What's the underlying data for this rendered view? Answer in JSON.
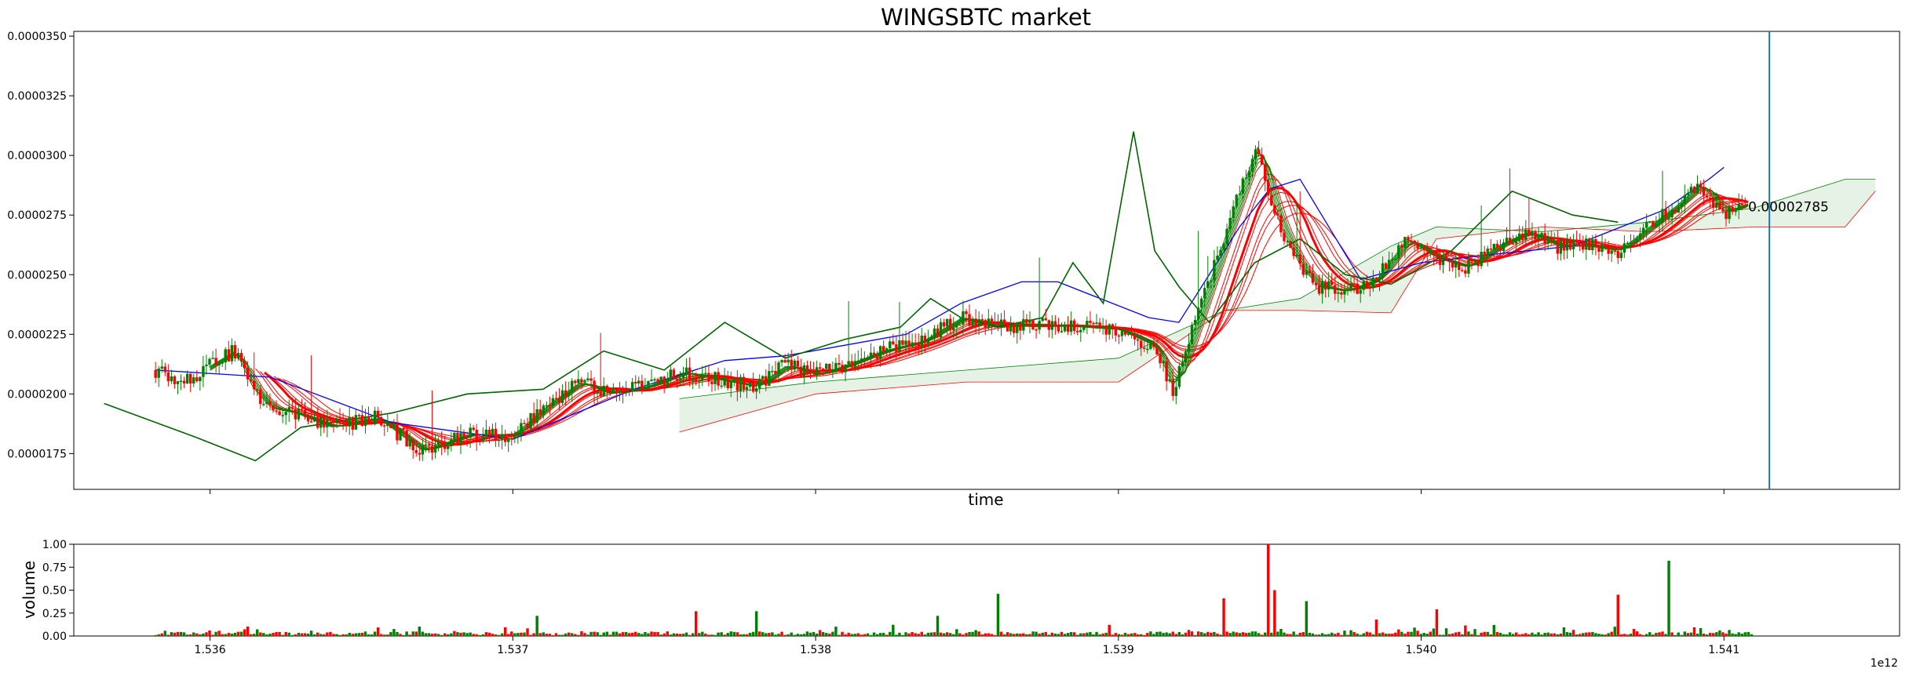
{
  "chart_data": [
    {
      "type": "candlestick",
      "title": "WINGSBTC market",
      "xlabel": "time",
      "ylabel": "",
      "x_offset_label": "1e12",
      "ylim": [
        1.6e-05,
        3.52e-05
      ],
      "xlim": [
        1.53555,
        1.54158
      ],
      "y_ticks": [
        "0.0000175",
        "0.0000200",
        "0.0000225",
        "0.0000250",
        "0.0000275",
        "0.0000300",
        "0.0000325",
        "0.0000350"
      ],
      "x_ticks": [
        "1.536",
        "1.537",
        "1.538",
        "1.539",
        "1.540",
        "1.541"
      ],
      "last_price_label": "0.00002785",
      "vertical_marker_x": 1.54115,
      "grid": false,
      "colors": {
        "up": "#008000",
        "down": "#ff0000",
        "kijun": "#0000ff",
        "tenkan": "#ff0000",
        "chikou": "#006400",
        "marker": "#1f77b4"
      },
      "price_path": {
        "x": [
          1.53582,
          1.53592,
          1.536,
          1.53608,
          1.53614,
          1.5362,
          1.53628,
          1.5364,
          1.53655,
          1.5367,
          1.53685,
          1.537,
          1.53712,
          1.53722,
          1.53732,
          1.53744,
          1.53756,
          1.53768,
          1.5378,
          1.5379,
          1.538,
          1.5381,
          1.53822,
          1.53835,
          1.53848,
          1.5386,
          1.53875,
          1.53888,
          1.539,
          1.53912,
          1.53918,
          1.53924,
          1.53932,
          1.5394,
          1.53946,
          1.5395,
          1.53954,
          1.5396,
          1.53966,
          1.53975,
          1.53985,
          1.53995,
          1.54005,
          1.54015,
          1.54025,
          1.54035,
          1.54045,
          1.54055,
          1.54065,
          1.54075,
          1.54085,
          1.54092,
          1.541,
          1.54108
        ],
        "y": [
          2.1e-05,
          2.05e-05,
          2.12e-05,
          2.18e-05,
          2.02e-05,
          1.94e-05,
          1.92e-05,
          1.86e-05,
          1.9e-05,
          1.76e-05,
          1.83e-05,
          1.83e-05,
          1.96e-05,
          2.05e-05,
          2e-05,
          2.03e-05,
          2.09e-05,
          2.06e-05,
          2.03e-05,
          2.12e-05,
          2.08e-05,
          2.12e-05,
          2.18e-05,
          2.22e-05,
          2.32e-05,
          2.28e-05,
          2.29e-05,
          2.28e-05,
          2.27e-05,
          2.2e-05,
          2.02e-05,
          2.25e-05,
          2.55e-05,
          2.85e-05,
          3.05e-05,
          2.82e-05,
          2.68e-05,
          2.53e-05,
          2.45e-05,
          2.43e-05,
          2.48e-05,
          2.65e-05,
          2.57e-05,
          2.53e-05,
          2.62e-05,
          2.68e-05,
          2.62e-05,
          2.62e-05,
          2.6e-05,
          2.7e-05,
          2.8e-05,
          2.88e-05,
          2.76e-05,
          2.8e-05
        ]
      },
      "kijun_sen": {
        "x": [
          1.53582,
          1.5362,
          1.5366,
          1.537,
          1.5374,
          1.5377,
          1.5379,
          1.5383,
          1.53848,
          1.53868,
          1.5388,
          1.5391,
          1.5392,
          1.5394,
          1.5395,
          1.5396,
          1.5398,
          1.54,
          1.5402,
          1.5405,
          1.5408,
          1.54095,
          1.541
        ],
        "y": [
          2.1e-05,
          2.07e-05,
          1.88e-05,
          1.81e-05,
          2.02e-05,
          2.14e-05,
          2.16e-05,
          2.25e-05,
          2.38e-05,
          2.47e-05,
          2.47e-05,
          2.32e-05,
          2.3e-05,
          2.7e-05,
          2.86e-05,
          2.9e-05,
          2.48e-05,
          2.55e-05,
          2.58e-05,
          2.62e-05,
          2.77e-05,
          2.9e-05,
          2.95e-05
        ]
      },
      "chikou_span": {
        "x": [
          1.53565,
          1.53595,
          1.53615,
          1.5363,
          1.5366,
          1.53685,
          1.5371,
          1.5373,
          1.5375,
          1.5377,
          1.5379,
          1.5381,
          1.53828,
          1.53838,
          1.53848,
          1.5386,
          1.53875,
          1.53885,
          1.53895,
          1.53905,
          1.53912,
          1.5392,
          1.5393,
          1.53945,
          1.5396,
          1.53975,
          1.5399,
          1.5401,
          1.5403,
          1.5405,
          1.54065
        ],
        "y": [
          1.96e-05,
          1.82e-05,
          1.72e-05,
          1.86e-05,
          1.92e-05,
          2e-05,
          2.02e-05,
          2.18e-05,
          2.1e-05,
          2.3e-05,
          2.15e-05,
          2.23e-05,
          2.28e-05,
          2.4e-05,
          2.32e-05,
          2.28e-05,
          2.32e-05,
          2.55e-05,
          2.38e-05,
          3.1e-05,
          2.6e-05,
          2.45e-05,
          2.3e-05,
          2.55e-05,
          2.65e-05,
          2.5e-05,
          2.46e-05,
          2.6e-05,
          2.85e-05,
          2.75e-05,
          2.72e-05
        ]
      },
      "senkou_span_a": {
        "x": [
          1.53755,
          1.538,
          1.5385,
          1.539,
          1.53935,
          1.5396,
          1.5399,
          1.54005,
          1.5404,
          1.54075,
          1.5411,
          1.5414,
          1.5415
        ],
        "y": [
          1.98e-05,
          2.05e-05,
          2.1e-05,
          2.15e-05,
          2.35e-05,
          2.4e-05,
          2.62e-05,
          2.7e-05,
          2.68e-05,
          2.72e-05,
          2.78e-05,
          2.9e-05,
          2.9e-05
        ]
      },
      "senkou_span_b": {
        "x": [
          1.53755,
          1.538,
          1.5385,
          1.539,
          1.53935,
          1.5396,
          1.5399,
          1.54005,
          1.5404,
          1.54075,
          1.5411,
          1.5414,
          1.5415
        ],
        "y": [
          1.84e-05,
          2e-05,
          2.05e-05,
          2.05e-05,
          2.35e-05,
          2.35e-05,
          2.34e-05,
          2.65e-05,
          2.7e-05,
          2.68e-05,
          2.7e-05,
          2.7e-05,
          2.85e-05
        ]
      },
      "volume_spikes": {
        "x": [
          1.536,
          1.53708,
          1.5376,
          1.5378,
          1.5384,
          1.5386,
          1.53935,
          1.5395,
          1.53952,
          1.53962,
          1.53985,
          1.54005,
          1.54065,
          1.54082
        ],
        "y": [
          0.06,
          0.22,
          0.27,
          0.27,
          0.22,
          0.46,
          0.41,
          1.0,
          0.5,
          0.38,
          0.18,
          0.29,
          0.45,
          0.82
        ]
      }
    },
    {
      "type": "bar",
      "ylabel": "volume",
      "ylim": [
        0.0,
        1.0
      ],
      "y_ticks": [
        "0.00",
        "0.25",
        "0.50",
        "0.75",
        "1.00"
      ],
      "x_ticks": [
        "1.536",
        "1.537",
        "1.538",
        "1.539",
        "1.540",
        "1.541"
      ],
      "x_offset_label": "1e12"
    }
  ]
}
